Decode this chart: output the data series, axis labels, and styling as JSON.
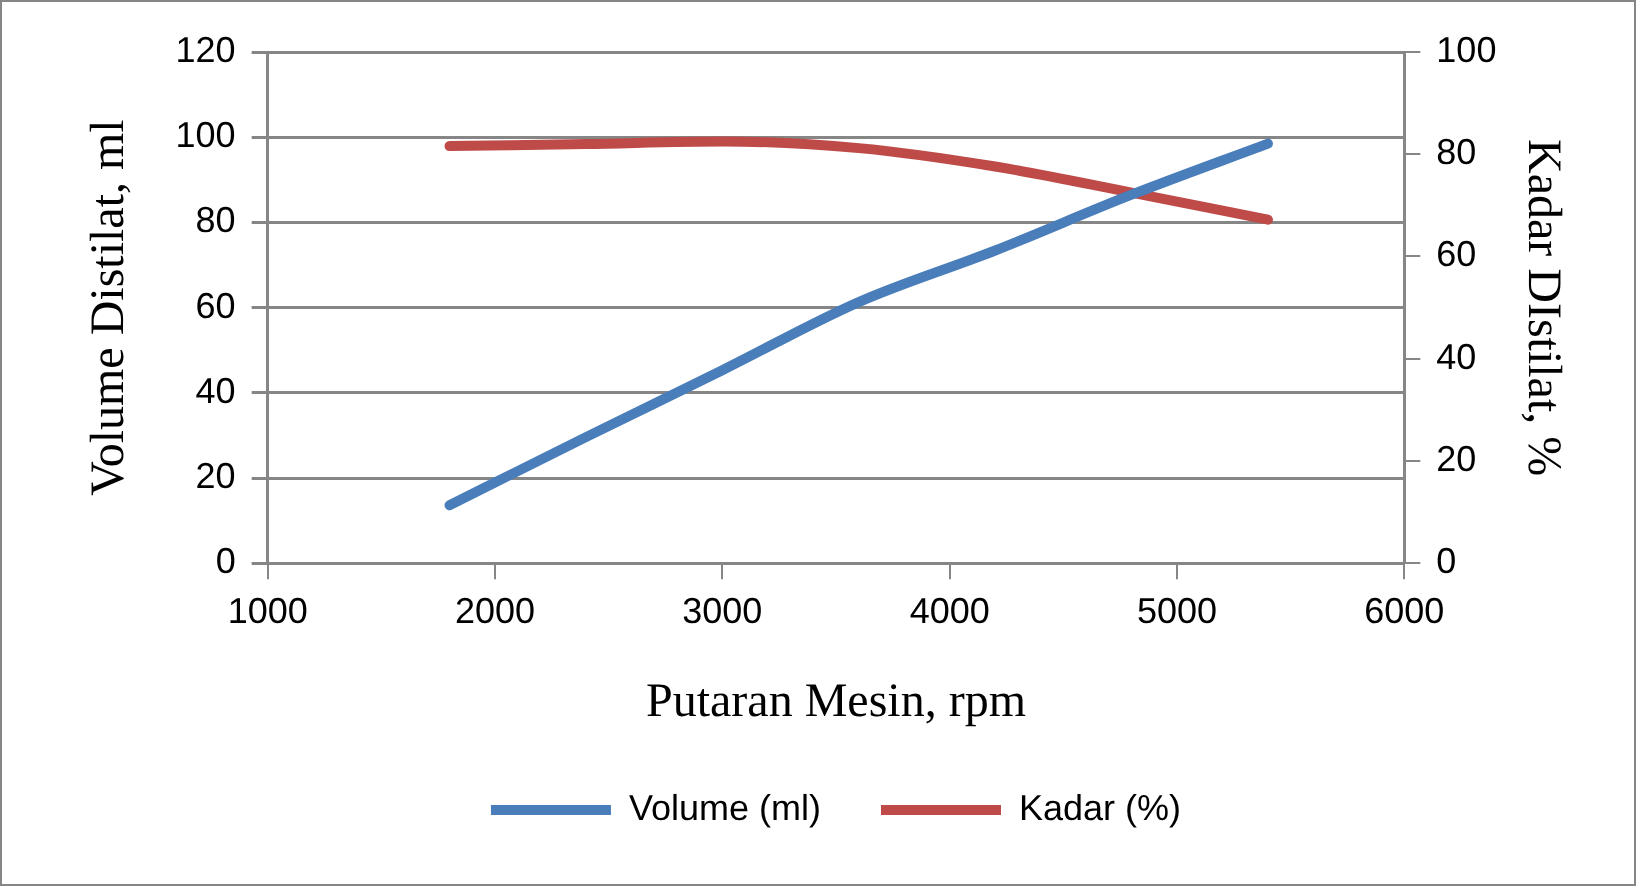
{
  "chart_data": {
    "type": "line",
    "xlabel": "Putaran Mesin, rpm",
    "ylabel": "Volume Distilat, ml",
    "y2label": "Kadar DIstilat, %",
    "x": [
      1800,
      2400,
      3000,
      3600,
      4200,
      4800,
      5400
    ],
    "series": [
      {
        "name": "Volume (ml)",
        "color": "#4a7ebb",
        "values": [
          13.6,
          29.6,
          45.3,
          61.3,
          73.4,
          86.5,
          98.5
        ]
      },
      {
        "name": "Kadar (%)",
        "color": "#be4b48",
        "axis": "y2",
        "values": [
          81.6,
          82,
          82.5,
          81.2,
          77.6,
          72.5,
          67.2
        ]
      }
    ],
    "xlim": [
      1000,
      6000
    ],
    "xticks": [
      1000,
      2000,
      3000,
      4000,
      5000,
      6000
    ],
    "ylim": [
      0,
      120
    ],
    "yticks": [
      0,
      20,
      40,
      60,
      80,
      100,
      120
    ],
    "y2lim": [
      0,
      100
    ],
    "y2ticks": [
      0,
      20,
      40,
      60,
      80,
      100
    ],
    "grid": "y",
    "legend": "bottom",
    "marker": "none",
    "line_style": "solid"
  }
}
